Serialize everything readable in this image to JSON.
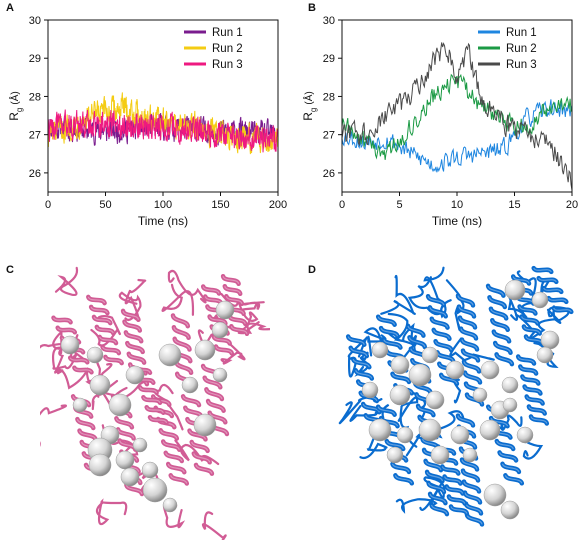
{
  "panels": {
    "a": "A",
    "b": "B",
    "c": "C",
    "d": "D"
  },
  "colors": {
    "run1_a": "#7a1c8e",
    "run2_a": "#f4cc13",
    "run3_a": "#ee1980",
    "run1_b": "#1e86e0",
    "run2_b": "#1b9a44",
    "run3_b": "#4a4a4a",
    "ribbon_c": "#d15c95",
    "ribbon_d": "#0a6ccf",
    "sphere": "#d4d4d4"
  },
  "chart_data": [
    {
      "panel": "A",
      "type": "line",
      "xlabel": "Time (ns)",
      "ylabel_main": "R",
      "ylabel_sub": "g",
      "ylabel_unit": "(Å)",
      "xlim": [
        0,
        200
      ],
      "ylim": [
        25.5,
        30
      ],
      "xticks": [
        0,
        50,
        100,
        150,
        200
      ],
      "yticks": [
        26,
        27,
        28,
        29,
        30
      ],
      "grid": false,
      "legend_position": "top-right",
      "series": [
        {
          "name": "Run 1",
          "color": "#7a1c8e",
          "mean": 27.2,
          "noise": 0.45,
          "smooth_points": [
            [
              0,
              27.2
            ],
            [
              50,
              27.1
            ],
            [
              100,
              27.2
            ],
            [
              150,
              27.1
            ],
            [
              200,
              27.0
            ]
          ]
        },
        {
          "name": "Run 2",
          "color": "#f4cc13",
          "mean": 27.3,
          "noise": 0.5,
          "smooth_points": [
            [
              0,
              27.0
            ],
            [
              50,
              27.6
            ],
            [
              65,
              27.7
            ],
            [
              100,
              27.3
            ],
            [
              130,
              27.2
            ],
            [
              160,
              26.9
            ],
            [
              200,
              26.9
            ]
          ]
        },
        {
          "name": "Run 3",
          "color": "#ee1980",
          "mean": 27.2,
          "noise": 0.5,
          "smooth_points": [
            [
              0,
              27.2
            ],
            [
              50,
              27.3
            ],
            [
              100,
              27.2
            ],
            [
              140,
              27.1
            ],
            [
              160,
              26.9
            ],
            [
              200,
              26.9
            ]
          ]
        }
      ]
    },
    {
      "panel": "B",
      "type": "line",
      "xlabel": "Time (ns)",
      "ylabel_main": "R",
      "ylabel_sub": "g",
      "ylabel_unit": "(Å)",
      "xlim": [
        0,
        20
      ],
      "ylim": [
        25.5,
        30
      ],
      "xticks": [
        0,
        5,
        10,
        15,
        20
      ],
      "yticks": [
        26,
        27,
        28,
        29,
        30
      ],
      "grid": false,
      "legend_position": "top-right",
      "series": [
        {
          "name": "Run 1",
          "color": "#1e86e0",
          "noise": 0.35,
          "smooth_points": [
            [
              0,
              27.0
            ],
            [
              2,
              26.8
            ],
            [
              4,
              26.9
            ],
            [
              6,
              26.5
            ],
            [
              8,
              26.2
            ],
            [
              10,
              26.4
            ],
            [
              12,
              26.5
            ],
            [
              14,
              26.6
            ],
            [
              16,
              27.4
            ],
            [
              18,
              27.7
            ],
            [
              20,
              27.6
            ]
          ]
        },
        {
          "name": "Run 2",
          "color": "#1b9a44",
          "noise": 0.35,
          "smooth_points": [
            [
              0,
              27.3
            ],
            [
              2,
              26.8
            ],
            [
              4,
              26.5
            ],
            [
              6,
              27.2
            ],
            [
              8,
              28.0
            ],
            [
              10,
              28.4
            ],
            [
              12,
              27.8
            ],
            [
              14,
              27.4
            ],
            [
              16,
              27.2
            ],
            [
              18,
              27.7
            ],
            [
              20,
              27.8
            ]
          ]
        },
        {
          "name": "Run 3",
          "color": "#4a4a4a",
          "noise": 0.4,
          "smooth_points": [
            [
              0,
              27.0
            ],
            [
              2,
              27.0
            ],
            [
              4,
              27.5
            ],
            [
              6,
              28.0
            ],
            [
              8,
              29.0
            ],
            [
              9,
              29.3
            ],
            [
              10,
              28.6
            ],
            [
              11,
              29.2
            ],
            [
              12,
              28.0
            ],
            [
              14,
              27.3
            ],
            [
              16,
              27.0
            ],
            [
              18,
              26.8
            ],
            [
              20,
              25.8
            ]
          ]
        }
      ]
    }
  ]
}
